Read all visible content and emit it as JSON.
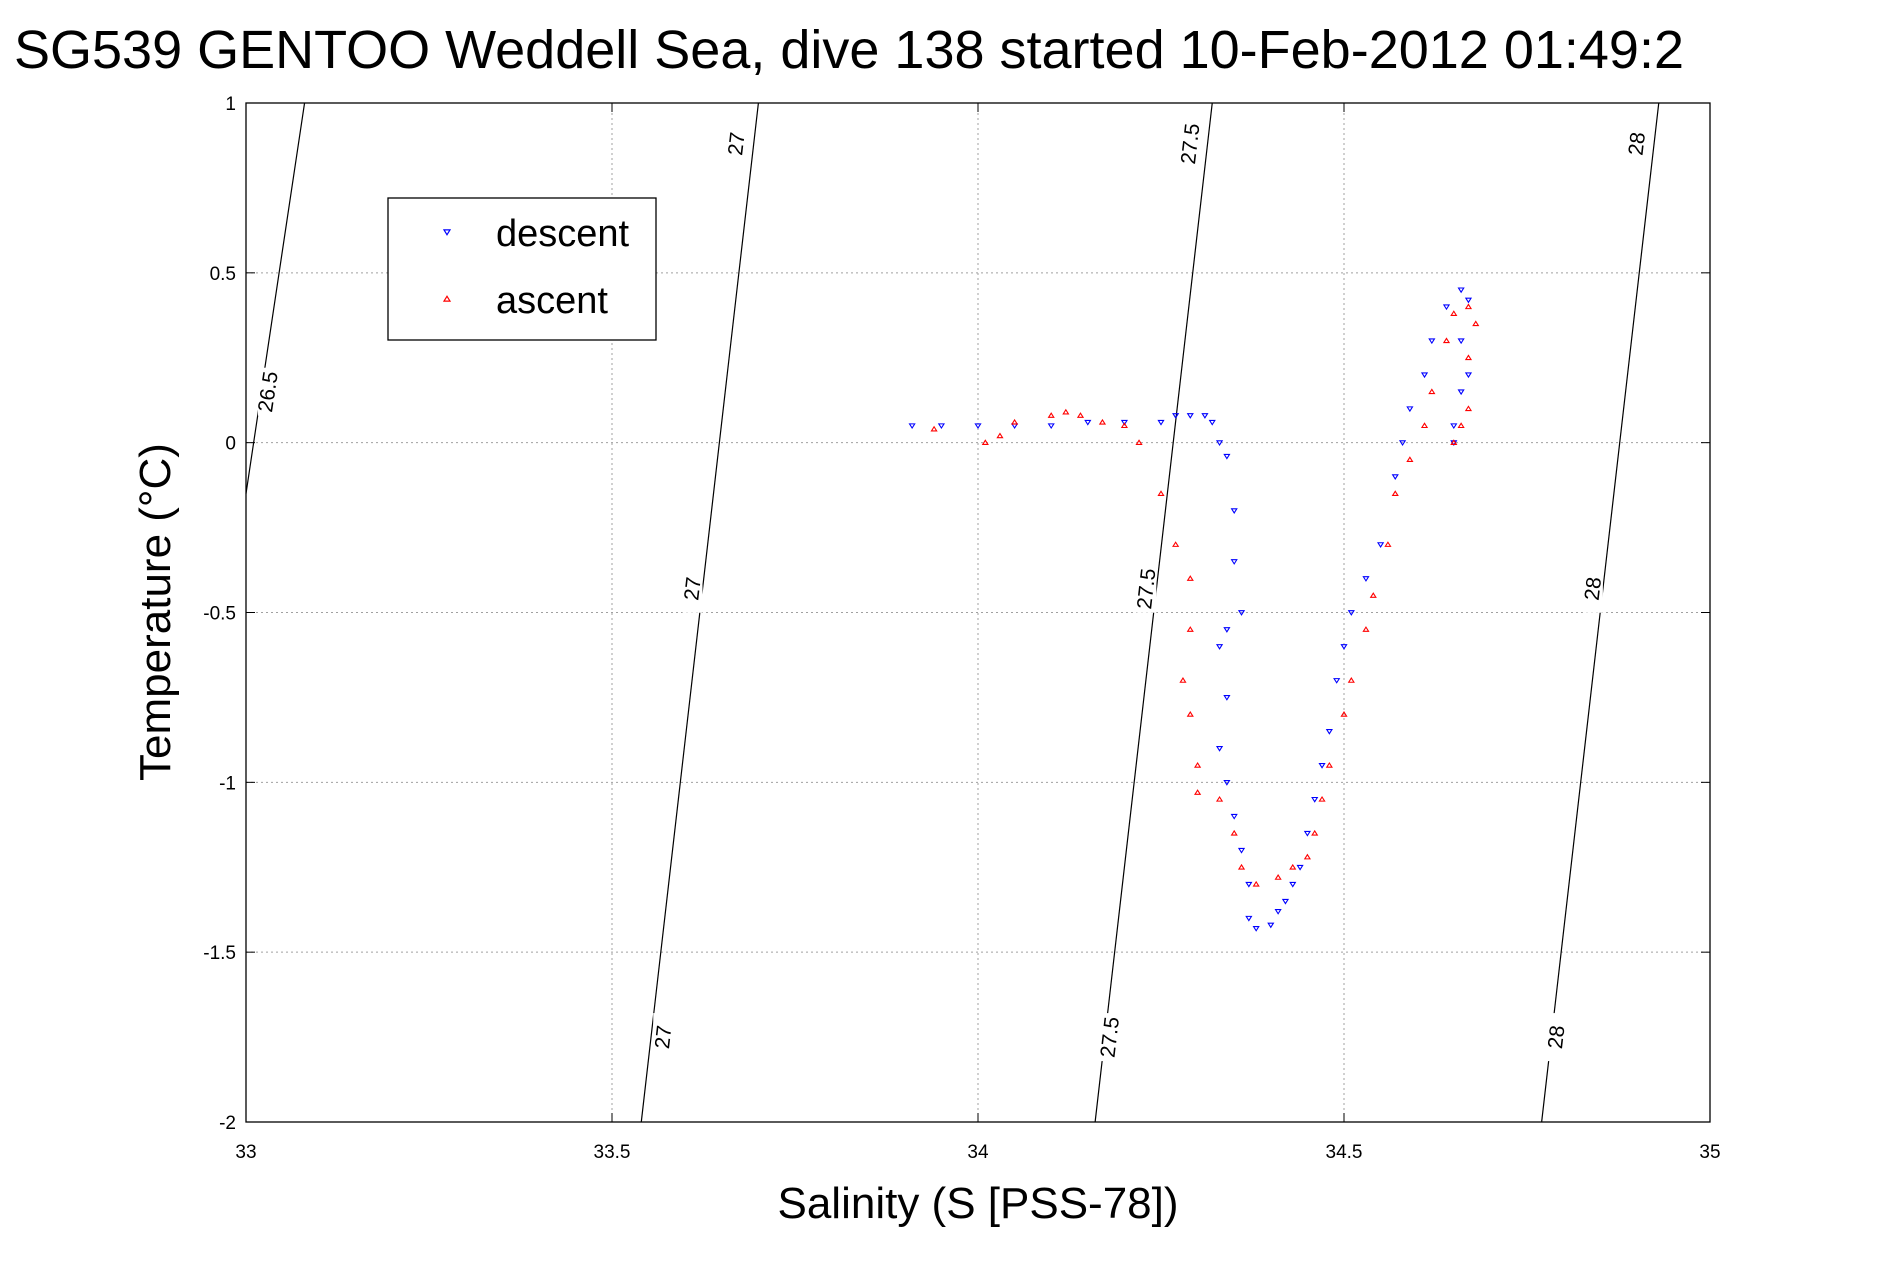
{
  "chart_data": {
    "type": "scatter",
    "title": "SG539 GENTOO Weddell Sea, dive 138 started 10-Feb-2012 01:49:2",
    "xlabel": "Salinity (S [PSS-78])",
    "ylabel": "Temperature (°C)",
    "xlim": [
      33,
      35
    ],
    "ylim": [
      -2,
      1
    ],
    "xticks": [
      33,
      33.5,
      34,
      34.5,
      35
    ],
    "yticks": [
      -2,
      -1.5,
      -1,
      -0.5,
      0,
      0.5,
      1
    ],
    "xtick_labels": [
      "33",
      "33.5",
      "34",
      "34.5",
      "35"
    ],
    "ytick_labels": [
      "-2",
      "-1.5",
      "-1",
      "-0.5",
      "0",
      "0.5",
      "1"
    ],
    "grid": true,
    "legend_position": "top-left",
    "legend": [
      {
        "name": "descent",
        "color": "#0000ff",
        "marker": "triangle-down"
      },
      {
        "name": "ascent",
        "color": "#ff0000",
        "marker": "triangle-up"
      }
    ],
    "contours": [
      {
        "label": "26.5",
        "points": [
          [
            33.0,
            -0.15
          ],
          [
            33.08,
            1.0
          ]
        ],
        "label_at": [
          [
            33.03,
            0.15
          ]
        ]
      },
      {
        "label": "27",
        "points": [
          [
            33.54,
            -2.0
          ],
          [
            33.7,
            1.0
          ]
        ],
        "label_at": [
          [
            33.57,
            -1.75
          ],
          [
            33.61,
            -0.43
          ],
          [
            33.67,
            0.88
          ]
        ]
      },
      {
        "label": "27.5",
        "points": [
          [
            34.16,
            -2.0
          ],
          [
            34.32,
            1.0
          ]
        ],
        "label_at": [
          [
            34.18,
            -1.75
          ],
          [
            34.23,
            -0.43
          ],
          [
            34.29,
            0.88
          ]
        ]
      },
      {
        "label": "28",
        "points": [
          [
            34.77,
            -2.0
          ],
          [
            34.93,
            1.0
          ]
        ],
        "label_at": [
          [
            34.79,
            -1.75
          ],
          [
            34.84,
            -0.43
          ],
          [
            34.9,
            0.88
          ]
        ]
      }
    ],
    "series": [
      {
        "name": "descent",
        "color": "#0000ff",
        "marker": "triangle-down",
        "points": [
          [
            33.91,
            0.05
          ],
          [
            33.95,
            0.05
          ],
          [
            34.0,
            0.05
          ],
          [
            34.05,
            0.05
          ],
          [
            34.1,
            0.05
          ],
          [
            34.15,
            0.06
          ],
          [
            34.2,
            0.06
          ],
          [
            34.25,
            0.06
          ],
          [
            34.27,
            0.08
          ],
          [
            34.29,
            0.08
          ],
          [
            34.31,
            0.08
          ],
          [
            34.32,
            0.06
          ],
          [
            34.33,
            0.0
          ],
          [
            34.34,
            -0.04
          ],
          [
            34.35,
            -0.2
          ],
          [
            34.35,
            -0.35
          ],
          [
            34.36,
            -0.5
          ],
          [
            34.34,
            -0.55
          ],
          [
            34.33,
            -0.6
          ],
          [
            34.34,
            -0.75
          ],
          [
            34.33,
            -0.9
          ],
          [
            34.34,
            -1.0
          ],
          [
            34.35,
            -1.1
          ],
          [
            34.36,
            -1.2
          ],
          [
            34.37,
            -1.3
          ],
          [
            34.37,
            -1.4
          ],
          [
            34.38,
            -1.43
          ],
          [
            34.4,
            -1.42
          ],
          [
            34.41,
            -1.38
          ],
          [
            34.42,
            -1.35
          ],
          [
            34.43,
            -1.3
          ],
          [
            34.44,
            -1.25
          ],
          [
            34.45,
            -1.15
          ],
          [
            34.46,
            -1.05
          ],
          [
            34.47,
            -0.95
          ],
          [
            34.48,
            -0.85
          ],
          [
            34.49,
            -0.7
          ],
          [
            34.5,
            -0.6
          ],
          [
            34.51,
            -0.5
          ],
          [
            34.53,
            -0.4
          ],
          [
            34.55,
            -0.3
          ],
          [
            34.57,
            -0.1
          ],
          [
            34.58,
            0.0
          ],
          [
            34.59,
            0.1
          ],
          [
            34.61,
            0.2
          ],
          [
            34.62,
            0.3
          ],
          [
            34.64,
            0.4
          ],
          [
            34.66,
            0.45
          ],
          [
            34.67,
            0.42
          ],
          [
            34.66,
            0.3
          ],
          [
            34.66,
            0.15
          ],
          [
            34.65,
            0.05
          ],
          [
            34.65,
            0.0
          ],
          [
            34.67,
            0.2
          ]
        ]
      },
      {
        "name": "ascent",
        "color": "#ff0000",
        "marker": "triangle-up",
        "points": [
          [
            33.94,
            0.04
          ],
          [
            34.01,
            0.0
          ],
          [
            34.03,
            0.02
          ],
          [
            34.05,
            0.06
          ],
          [
            34.1,
            0.08
          ],
          [
            34.12,
            0.09
          ],
          [
            34.14,
            0.08
          ],
          [
            34.17,
            0.06
          ],
          [
            34.2,
            0.05
          ],
          [
            34.22,
            0.0
          ],
          [
            34.25,
            -0.15
          ],
          [
            34.27,
            -0.3
          ],
          [
            34.29,
            -0.4
          ],
          [
            34.29,
            -0.55
          ],
          [
            34.28,
            -0.7
          ],
          [
            34.29,
            -0.8
          ],
          [
            34.3,
            -0.95
          ],
          [
            34.3,
            -1.03
          ],
          [
            34.33,
            -1.05
          ],
          [
            34.35,
            -1.15
          ],
          [
            34.36,
            -1.25
          ],
          [
            34.38,
            -1.3
          ],
          [
            34.41,
            -1.28
          ],
          [
            34.43,
            -1.25
          ],
          [
            34.45,
            -1.22
          ],
          [
            34.46,
            -1.15
          ],
          [
            34.47,
            -1.05
          ],
          [
            34.48,
            -0.95
          ],
          [
            34.5,
            -0.8
          ],
          [
            34.51,
            -0.7
          ],
          [
            34.53,
            -0.55
          ],
          [
            34.54,
            -0.45
          ],
          [
            34.56,
            -0.3
          ],
          [
            34.57,
            -0.15
          ],
          [
            34.59,
            -0.05
          ],
          [
            34.61,
            0.05
          ],
          [
            34.62,
            0.15
          ],
          [
            34.64,
            0.3
          ],
          [
            34.65,
            0.38
          ],
          [
            34.67,
            0.4
          ],
          [
            34.68,
            0.35
          ],
          [
            34.67,
            0.25
          ],
          [
            34.67,
            0.1
          ],
          [
            34.66,
            0.05
          ],
          [
            34.65,
            0.0
          ]
        ]
      }
    ]
  }
}
